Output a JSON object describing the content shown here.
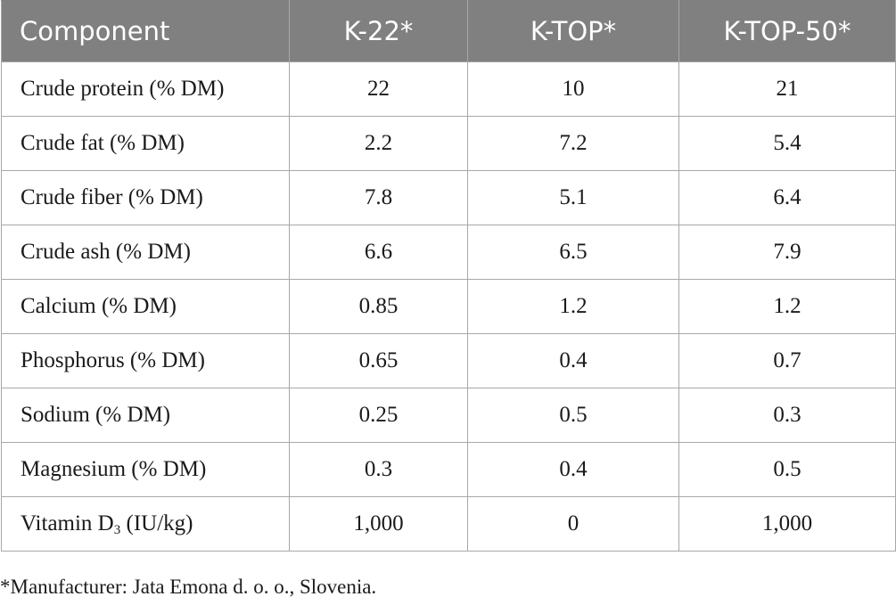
{
  "table": {
    "headers": [
      "Component",
      "K-22*",
      "K-TOP*",
      "K-TOP-50*"
    ],
    "rows": [
      {
        "component": "Crude protein (% DM)",
        "k22": "22",
        "ktop": "10",
        "ktop50": "21"
      },
      {
        "component": "Crude fat (% DM)",
        "k22": "2.2",
        "ktop": "7.2",
        "ktop50": "5.4"
      },
      {
        "component": "Crude fiber (% DM)",
        "k22": "7.8",
        "ktop": "5.1",
        "ktop50": "6.4"
      },
      {
        "component": "Crude ash (% DM)",
        "k22": "6.6",
        "ktop": "6.5",
        "ktop50": "7.9"
      },
      {
        "component": "Calcium (% DM)",
        "k22": "0.85",
        "ktop": "1.2",
        "ktop50": "1.2"
      },
      {
        "component": "Phosphorus (% DM)",
        "k22": "0.65",
        "ktop": "0.4",
        "ktop50": "0.7"
      },
      {
        "component": "Sodium (% DM)",
        "k22": "0.25",
        "ktop": "0.5",
        "ktop50": "0.3"
      },
      {
        "component": "Magnesium (% DM)",
        "k22": "0.3",
        "ktop": "0.4",
        "ktop50": "0.5"
      },
      {
        "component_prefix": "Vitamin D",
        "component_sub": "3",
        "component_suffix": " (IU/kg)",
        "k22": "1,000",
        "ktop": "0",
        "ktop50": "1,000"
      }
    ]
  },
  "footnote": "*Manufacturer: Jata Emona d. o. o., Slovenia.",
  "colors": {
    "header_bg": "#808080",
    "header_text": "#ffffff",
    "grid": "#a8a8a8"
  }
}
